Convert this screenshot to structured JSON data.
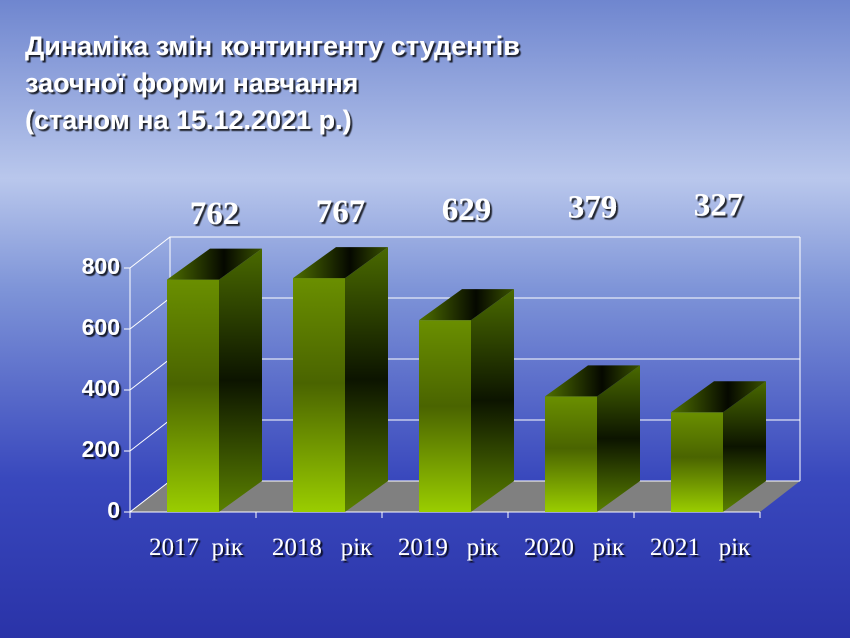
{
  "chart_data": {
    "type": "bar3d",
    "title": [
      "Динаміка змін контингенту студентів",
      "заочної форми навчання",
      "(станом на 15.12.2021 р.)"
    ],
    "categories": [
      "2017  рік",
      "2018   рік",
      "2019   рік",
      "2020   рік",
      "2021   рік"
    ],
    "values": [
      762,
      767,
      629,
      379,
      327
    ],
    "color": "#9acd00",
    "ylim": [
      0,
      800
    ],
    "yticks": [
      0,
      200,
      400,
      600,
      800
    ],
    "grid": true
  }
}
